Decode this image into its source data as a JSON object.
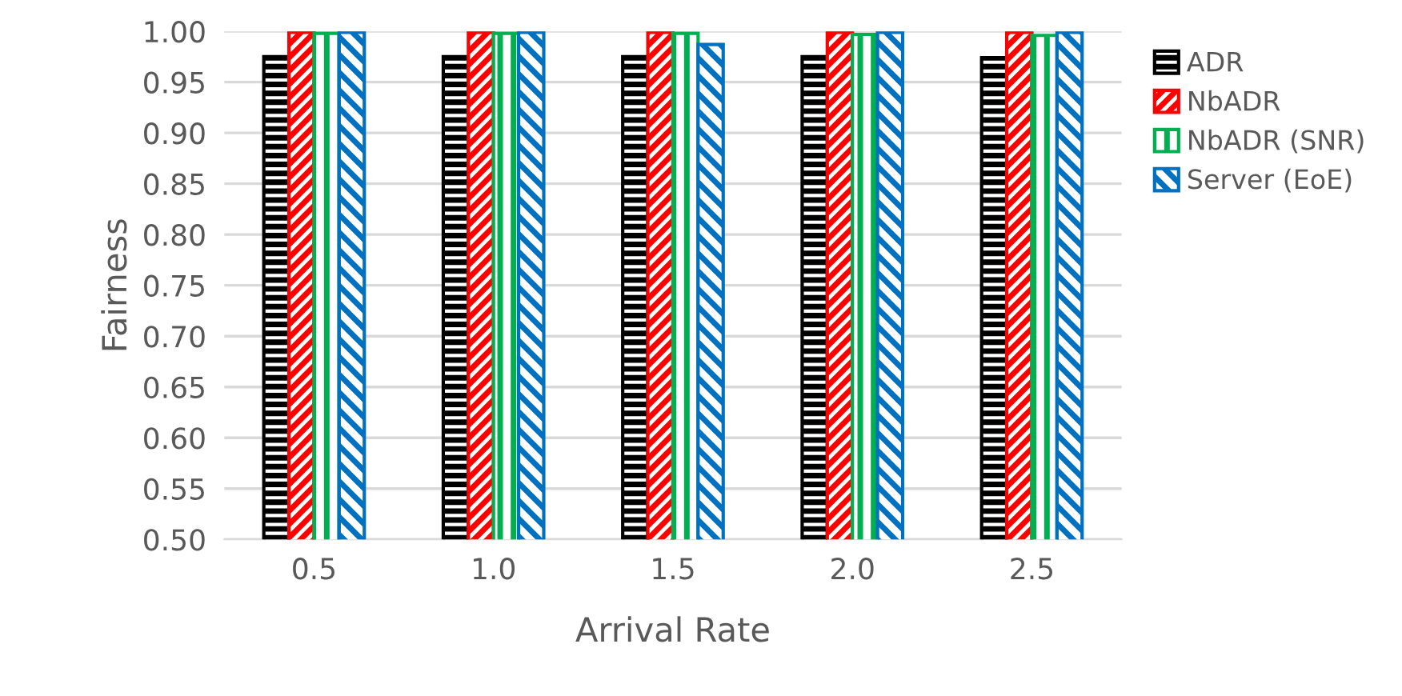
{
  "chart_data": {
    "type": "bar",
    "xlabel": "Arrival Rate",
    "ylabel": "Fairness",
    "categories": [
      "0.5",
      "1.0",
      "1.5",
      "2.0",
      "2.5"
    ],
    "series": [
      {
        "name": "ADR",
        "color": "#000000",
        "values": [
          0.975,
          0.975,
          0.975,
          0.975,
          0.974
        ]
      },
      {
        "name": "NbADR",
        "color": "#ff0000",
        "values": [
          0.999,
          0.999,
          0.999,
          0.999,
          0.999
        ]
      },
      {
        "name": "NbADR (SNR)",
        "color": "#00b050",
        "values": [
          0.998,
          0.998,
          0.998,
          0.997,
          0.996
        ]
      },
      {
        "name": "Server (EoE)",
        "color": "#0070c0",
        "values": [
          0.999,
          0.999,
          0.987,
          0.999,
          0.999
        ]
      }
    ],
    "ylim": [
      0.5,
      1.0
    ],
    "yticks": [
      {
        "value": 0.5,
        "label": "0.50"
      },
      {
        "value": 0.55,
        "label": "0.55"
      },
      {
        "value": 0.6,
        "label": "0.60"
      },
      {
        "value": 0.65,
        "label": "0.65"
      },
      {
        "value": 0.7,
        "label": "0.70"
      },
      {
        "value": 0.75,
        "label": "0.75"
      },
      {
        "value": 0.8,
        "label": "0.80"
      },
      {
        "value": 0.85,
        "label": "0.85"
      },
      {
        "value": 0.9,
        "label": "0.90"
      },
      {
        "value": 0.95,
        "label": "0.95"
      },
      {
        "value": 1.0,
        "label": "1.00"
      }
    ],
    "grid": "y",
    "legend": "right"
  }
}
